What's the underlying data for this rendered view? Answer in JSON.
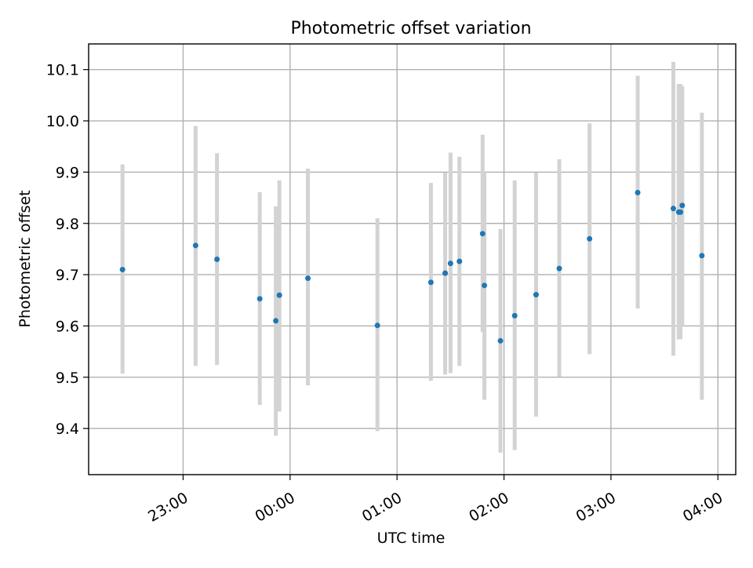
{
  "chart_data": {
    "type": "scatter",
    "title": "Photometric offset variation",
    "xlabel": "UTC time",
    "ylabel": "Photometric offset",
    "x_tick_labels": [
      "23:00",
      "00:00",
      "01:00",
      "02:00",
      "03:00",
      "04:00"
    ],
    "y_tick_labels": [
      "9.4",
      "9.5",
      "9.6",
      "9.7",
      "9.8",
      "9.9",
      "10.0",
      "10.1"
    ],
    "grid": true,
    "colors": {
      "points": "#1f77b4",
      "error_bars": "#d3d3d3",
      "grid": "#b0b0b0",
      "axes": "#000000"
    },
    "xlim": [
      "22:07",
      "04:10"
    ],
    "ylim": [
      9.31,
      10.15
    ],
    "points": [
      {
        "x": "22:26",
        "y": 9.71,
        "low": 9.507,
        "high": 9.915
      },
      {
        "x": "23:07",
        "y": 9.757,
        "low": 9.522,
        "high": 9.99
      },
      {
        "x": "23:19",
        "y": 9.73,
        "low": 9.524,
        "high": 9.937
      },
      {
        "x": "23:43",
        "y": 9.653,
        "low": 9.446,
        "high": 9.861
      },
      {
        "x": "23:52",
        "y": 9.61,
        "low": 9.386,
        "high": 9.833
      },
      {
        "x": "23:54",
        "y": 9.66,
        "low": 9.433,
        "high": 9.884
      },
      {
        "x": "00:10",
        "y": 9.693,
        "low": 9.484,
        "high": 9.907
      },
      {
        "x": "00:49",
        "y": 9.601,
        "low": 9.395,
        "high": 9.81
      },
      {
        "x": "01:19",
        "y": 9.685,
        "low": 9.493,
        "high": 9.879
      },
      {
        "x": "01:27",
        "y": 9.703,
        "low": 9.505,
        "high": 9.899
      },
      {
        "x": "01:30",
        "y": 9.722,
        "low": 9.508,
        "high": 9.938
      },
      {
        "x": "01:35",
        "y": 9.726,
        "low": 9.522,
        "high": 9.93
      },
      {
        "x": "01:48",
        "y": 9.78,
        "low": 9.588,
        "high": 9.973
      },
      {
        "x": "01:49",
        "y": 9.679,
        "low": 9.456,
        "high": 9.9
      },
      {
        "x": "01:58",
        "y": 9.571,
        "low": 9.353,
        "high": 9.789
      },
      {
        "x": "02:06",
        "y": 9.62,
        "low": 9.358,
        "high": 9.884
      },
      {
        "x": "02:18",
        "y": 9.661,
        "low": 9.423,
        "high": 9.899
      },
      {
        "x": "02:31",
        "y": 9.712,
        "low": 9.501,
        "high": 9.925
      },
      {
        "x": "02:48",
        "y": 9.77,
        "low": 9.545,
        "high": 9.995
      },
      {
        "x": "03:15",
        "y": 9.86,
        "low": 9.634,
        "high": 10.088
      },
      {
        "x": "03:35",
        "y": 9.829,
        "low": 9.542,
        "high": 10.115
      },
      {
        "x": "03:38",
        "y": 9.822,
        "low": 9.574,
        "high": 10.072
      },
      {
        "x": "03:39",
        "y": 9.822,
        "low": 9.574,
        "high": 10.072
      },
      {
        "x": "03:40",
        "y": 9.835,
        "low": 9.6,
        "high": 10.068
      },
      {
        "x": "03:51",
        "y": 9.737,
        "low": 9.456,
        "high": 10.016
      }
    ]
  }
}
